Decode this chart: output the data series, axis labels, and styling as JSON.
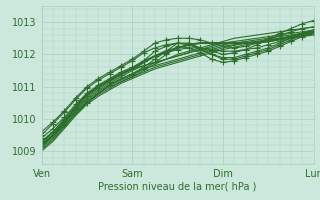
{
  "bg_color": "#cce8dc",
  "grid_color": "#a8cfc0",
  "line_color": "#2d6e2d",
  "title": "Pression niveau de la mer( hPa )",
  "xtick_labels": [
    "Ven",
    "Sam",
    "Dim",
    "Lun"
  ],
  "ytick_labels": [
    1009,
    1010,
    1011,
    1012,
    1013
  ],
  "ylim": [
    1008.6,
    1013.5
  ],
  "xlim": [
    0,
    72
  ],
  "xtick_positions": [
    0,
    24,
    48,
    72
  ],
  "ytick_positions": [
    1009,
    1010,
    1011,
    1012,
    1013
  ],
  "lines": [
    {
      "x": [
        0,
        3,
        6,
        9,
        12,
        15,
        18,
        21,
        24,
        27,
        30,
        33,
        36,
        39,
        42,
        45,
        48,
        51,
        54,
        57,
        60,
        63,
        66,
        69,
        72
      ],
      "y": [
        1009.1,
        1009.4,
        1009.8,
        1010.2,
        1010.5,
        1010.8,
        1011.0,
        1011.15,
        1011.3,
        1011.5,
        1011.7,
        1011.85,
        1012.0,
        1012.1,
        1012.2,
        1012.3,
        1012.4,
        1012.5,
        1012.55,
        1012.6,
        1012.65,
        1012.7,
        1012.75,
        1012.8,
        1012.85
      ],
      "marker": false,
      "lw": 0.8
    },
    {
      "x": [
        0,
        3,
        6,
        9,
        12,
        15,
        18,
        21,
        24,
        27,
        30,
        33,
        36,
        39,
        42,
        45,
        48,
        51,
        54,
        57,
        60,
        63,
        66,
        69,
        72
      ],
      "y": [
        1009.2,
        1009.5,
        1009.9,
        1010.3,
        1010.65,
        1010.9,
        1011.1,
        1011.3,
        1011.5,
        1011.65,
        1011.75,
        1011.85,
        1011.95,
        1012.05,
        1012.15,
        1012.25,
        1012.35,
        1012.4,
        1012.45,
        1012.5,
        1012.55,
        1012.6,
        1012.65,
        1012.7,
        1012.75
      ],
      "marker": false,
      "lw": 0.8
    },
    {
      "x": [
        0,
        3,
        6,
        9,
        12,
        15,
        18,
        21,
        24,
        27,
        30,
        33,
        36,
        39,
        42,
        45,
        48,
        51,
        54,
        57,
        60,
        63,
        66,
        69,
        72
      ],
      "y": [
        1009.3,
        1009.6,
        1010.0,
        1010.4,
        1010.75,
        1011.0,
        1011.2,
        1011.4,
        1011.55,
        1011.65,
        1011.75,
        1011.85,
        1011.95,
        1012.05,
        1012.15,
        1012.2,
        1012.3,
        1012.35,
        1012.4,
        1012.45,
        1012.5,
        1012.55,
        1012.6,
        1012.65,
        1012.7
      ],
      "marker": false,
      "lw": 0.8
    },
    {
      "x": [
        0,
        3,
        6,
        9,
        12,
        15,
        18,
        21,
        24,
        27,
        30,
        33,
        36,
        39,
        42,
        45,
        48,
        51,
        54,
        57,
        60,
        63,
        66,
        69,
        72
      ],
      "y": [
        1009.15,
        1009.45,
        1009.85,
        1010.25,
        1010.6,
        1010.85,
        1011.05,
        1011.25,
        1011.4,
        1011.55,
        1011.65,
        1011.75,
        1011.85,
        1011.95,
        1012.05,
        1012.15,
        1012.25,
        1012.3,
        1012.35,
        1012.4,
        1012.45,
        1012.5,
        1012.55,
        1012.6,
        1012.65
      ],
      "marker": false,
      "lw": 0.8
    },
    {
      "x": [
        0,
        3,
        6,
        9,
        12,
        15,
        18,
        21,
        24,
        27,
        30,
        33,
        36,
        39,
        42,
        45,
        48,
        51,
        54,
        57,
        60,
        63,
        66,
        69,
        72
      ],
      "y": [
        1009.05,
        1009.35,
        1009.75,
        1010.15,
        1010.5,
        1010.75,
        1010.95,
        1011.15,
        1011.3,
        1011.45,
        1011.6,
        1011.7,
        1011.8,
        1011.9,
        1012.0,
        1012.1,
        1012.2,
        1012.28,
        1012.35,
        1012.4,
        1012.45,
        1012.5,
        1012.55,
        1012.6,
        1012.65
      ],
      "marker": false,
      "lw": 0.8
    },
    {
      "x": [
        0,
        3,
        6,
        9,
        12,
        15,
        18,
        21,
        24,
        27,
        30,
        33,
        36,
        39,
        42,
        45,
        48,
        51,
        54,
        57,
        60,
        63,
        66,
        69,
        72
      ],
      "y": [
        1009.0,
        1009.3,
        1009.7,
        1010.1,
        1010.45,
        1010.7,
        1010.9,
        1011.1,
        1011.25,
        1011.4,
        1011.55,
        1011.65,
        1011.75,
        1011.85,
        1011.95,
        1012.05,
        1012.15,
        1012.22,
        1012.3,
        1012.35,
        1012.4,
        1012.45,
        1012.5,
        1012.55,
        1012.6
      ],
      "marker": false,
      "lw": 0.8
    },
    {
      "x": [
        0,
        3,
        6,
        9,
        12,
        15,
        18,
        21,
        24,
        27,
        30,
        33,
        36,
        39,
        42,
        45,
        48,
        51,
        54,
        57,
        60,
        63,
        66,
        69,
        72
      ],
      "y": [
        1009.4,
        1009.7,
        1010.05,
        1010.45,
        1010.8,
        1011.05,
        1011.25,
        1011.45,
        1011.6,
        1011.8,
        1011.95,
        1012.05,
        1012.15,
        1012.2,
        1012.2,
        1012.15,
        1012.1,
        1012.1,
        1012.15,
        1012.2,
        1012.3,
        1012.4,
        1012.5,
        1012.6,
        1012.7
      ],
      "marker": true,
      "lw": 0.8
    },
    {
      "x": [
        0,
        3,
        6,
        9,
        12,
        15,
        18,
        21,
        24,
        27,
        30,
        33,
        36,
        39,
        42,
        45,
        48,
        51,
        54,
        57,
        60,
        63,
        66,
        69,
        72
      ],
      "y": [
        1009.5,
        1009.85,
        1010.2,
        1010.6,
        1010.95,
        1011.2,
        1011.4,
        1011.6,
        1011.8,
        1012.05,
        1012.2,
        1012.3,
        1012.35,
        1012.3,
        1012.2,
        1012.1,
        1012.0,
        1012.05,
        1012.15,
        1012.3,
        1012.45,
        1012.6,
        1012.7,
        1012.8,
        1012.85
      ],
      "marker": true,
      "lw": 0.8
    },
    {
      "x": [
        0,
        3,
        6,
        9,
        12,
        15,
        18,
        21,
        24,
        27,
        30,
        33,
        36,
        39,
        42,
        45,
        48,
        51,
        54,
        57,
        60,
        63,
        66,
        69,
        72
      ],
      "y": [
        1009.3,
        1009.6,
        1009.95,
        1010.35,
        1010.7,
        1010.95,
        1011.15,
        1011.35,
        1011.55,
        1011.8,
        1012.1,
        1012.25,
        1012.35,
        1012.3,
        1012.15,
        1012.0,
        1011.9,
        1011.9,
        1012.0,
        1012.1,
        1012.2,
        1012.35,
        1012.5,
        1012.6,
        1012.65
      ],
      "marker": true,
      "lw": 0.8
    },
    {
      "x": [
        0,
        6,
        12,
        18,
        24,
        27,
        30,
        33,
        36,
        39,
        42,
        45,
        48,
        51,
        54,
        57,
        60,
        63,
        66,
        69,
        72
      ],
      "y": [
        1009.25,
        1009.9,
        1010.55,
        1011.05,
        1011.35,
        1011.55,
        1011.75,
        1012.0,
        1012.25,
        1012.2,
        1012.05,
        1011.85,
        1011.75,
        1011.8,
        1011.9,
        1012.0,
        1012.1,
        1012.25,
        1012.4,
        1012.55,
        1012.65
      ],
      "marker": true,
      "lw": 0.8
    },
    {
      "x": [
        0,
        3,
        6,
        9,
        12,
        15,
        18,
        21,
        24,
        27,
        30,
        33,
        36,
        39,
        42,
        45,
        48,
        51,
        54,
        57,
        60,
        63,
        66,
        69,
        72
      ],
      "y": [
        1009.6,
        1009.9,
        1010.25,
        1010.65,
        1011.0,
        1011.25,
        1011.45,
        1011.65,
        1011.85,
        1012.1,
        1012.35,
        1012.45,
        1012.5,
        1012.5,
        1012.45,
        1012.35,
        1012.25,
        1012.2,
        1012.25,
        1012.35,
        1012.5,
        1012.65,
        1012.8,
        1012.95,
        1013.05
      ],
      "marker": true,
      "lw": 0.8
    },
    {
      "x": [
        0,
        6,
        12,
        18,
        24,
        27,
        30,
        33,
        36,
        39,
        42,
        45,
        48,
        51,
        54,
        57,
        60,
        63,
        66,
        69,
        72
      ],
      "y": [
        1009.15,
        1009.8,
        1010.5,
        1011.05,
        1011.4,
        1011.6,
        1011.85,
        1012.1,
        1012.35,
        1012.35,
        1012.2,
        1012.0,
        1011.85,
        1011.85,
        1011.95,
        1012.05,
        1012.15,
        1012.3,
        1012.45,
        1012.6,
        1012.7
      ],
      "marker": true,
      "lw": 0.8
    },
    {
      "x": [
        0,
        3,
        6,
        9,
        12,
        15,
        18,
        21,
        24,
        27,
        30,
        33,
        36,
        39,
        42,
        45,
        48,
        54,
        60,
        66,
        72
      ],
      "y": [
        1009.2,
        1009.5,
        1009.9,
        1010.35,
        1010.75,
        1011.0,
        1011.2,
        1011.4,
        1011.55,
        1011.75,
        1011.95,
        1012.1,
        1012.2,
        1012.3,
        1012.35,
        1012.35,
        1012.35,
        1012.35,
        1012.4,
        1012.55,
        1012.75
      ],
      "marker": false,
      "lw": 1.5
    }
  ]
}
